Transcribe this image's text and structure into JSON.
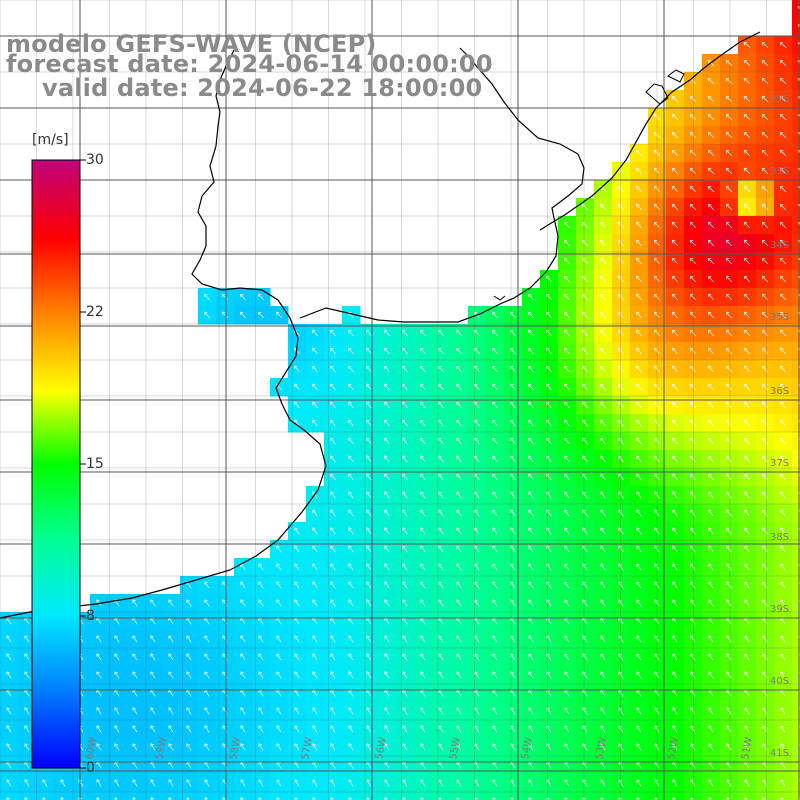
{
  "header": {
    "title": "modelo GEFS-WAVE (NCEP)",
    "forecast_line": "forecast date: 2024-06-14 00:00:00",
    "valid_line": "valid date: 2024-06-22 18:00:00"
  },
  "colorbar": {
    "unit": "[m/s]",
    "ticks": [
      "30",
      "22",
      "15",
      "8",
      "0"
    ],
    "colors": [
      "#0000ff",
      "#0080ff",
      "#00e8ff",
      "#00ff90",
      "#00ff00",
      "#ffff00",
      "#ff8000",
      "#ff0000",
      "#c0007a"
    ]
  },
  "grid": {
    "lat_labels": [
      "32S",
      "33S",
      "34S",
      "35S",
      "36S",
      "37S",
      "38S",
      "39S",
      "40S",
      "41S"
    ],
    "lon_labels": [
      "60W",
      "59W",
      "58W",
      "57W",
      "56W",
      "55W",
      "54W",
      "53W",
      "52W",
      "51W"
    ]
  }
}
